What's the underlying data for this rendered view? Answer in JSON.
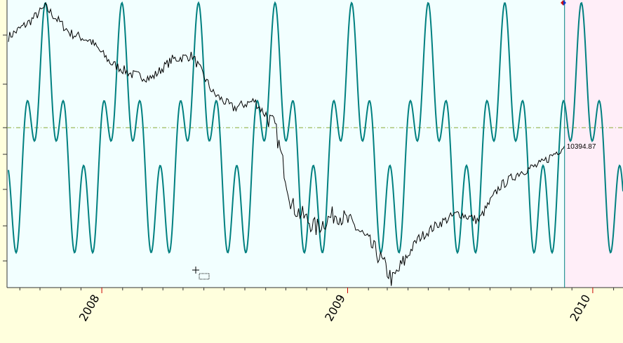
{
  "chart_data": {
    "type": "line",
    "x_axis": {
      "kind": "date",
      "range": [
        "2007-08-15",
        "2010-02-15"
      ],
      "tick_labels": [
        "2008",
        "2009",
        "2010"
      ],
      "label_rotation": "vertical-ish (-60deg)"
    },
    "y_axis": {
      "scale": "linear",
      "tick_labels_shown": false
    },
    "grid": false,
    "reference_line": {
      "style": "dash-dot",
      "color": "#88aa33"
    },
    "current_marker": {
      "date": "2009-11-20",
      "label": "10394.87",
      "value": 10394.87
    },
    "projection_zone": {
      "from": "2009-11-20",
      "color": "#ffeef8"
    },
    "series": [
      {
        "kind": "price",
        "color": "#000000",
        "x": [
          "2007-08-15",
          "2007-09-15",
          "2007-10-09",
          "2007-11-15",
          "2007-12-15",
          "2008-01-15",
          "2008-02-15",
          "2008-03-15",
          "2008-04-15",
          "2008-05-15",
          "2008-06-15",
          "2008-07-15",
          "2008-08-15",
          "2008-09-15",
          "2008-10-10",
          "2008-11-15",
          "2008-12-15",
          "2009-01-15",
          "2009-02-15",
          "2009-03-09",
          "2009-04-15",
          "2009-05-15",
          "2009-06-15",
          "2009-07-15",
          "2009-08-15",
          "2009-09-15",
          "2009-10-15",
          "2009-11-20"
        ],
        "values": [
          13300,
          13700,
          14100,
          13400,
          13200,
          12600,
          12300,
          12200,
          12700,
          12800,
          11800,
          11400,
          11600,
          10900,
          8800,
          8200,
          8600,
          8200,
          7500,
          6800,
          7900,
          8300,
          8600,
          8400,
          9300,
          9700,
          9900,
          10394.87
        ]
      },
      {
        "kind": "cycle",
        "color": "#008080",
        "period_days": 114,
        "phase_peak_date": "2007-10-09"
      }
    ]
  }
}
